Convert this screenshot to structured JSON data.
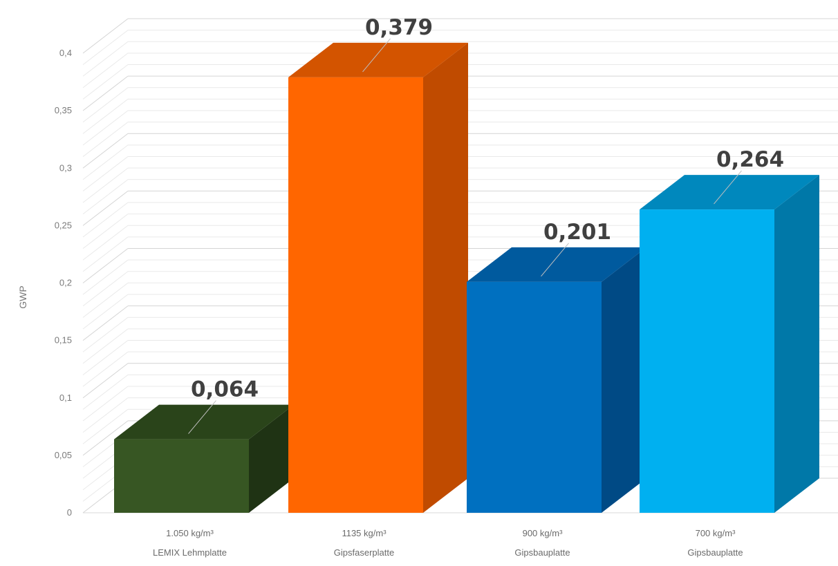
{
  "chart_data": {
    "type": "bar",
    "style": "3d-column",
    "ylabel": "GWP",
    "ylim": [
      0,
      0.4
    ],
    "ytick_labels": [
      "0",
      "0,05",
      "0,1",
      "0,15",
      "0,2",
      "0,25",
      "0,3",
      "0,35",
      "0,4"
    ],
    "grid": true,
    "legend": "none",
    "categories": [
      {
        "line1": "1.050 kg/m³",
        "line2": "LEMIX Lehmplatte"
      },
      {
        "line1": "1135 kg/m³",
        "line2": "Gipsfaserplatte"
      },
      {
        "line1": "900 kg/m³",
        "line2": "Gipsbauplatte"
      },
      {
        "line1": "700 kg/m³",
        "line2": "Gipsbauplatte"
      }
    ],
    "values": [
      0.064,
      0.379,
      0.201,
      0.264
    ],
    "value_labels": [
      "0,064",
      "0,379",
      "0,201",
      "0,264"
    ],
    "colors": [
      {
        "front": "#375623",
        "side": "#1f3314",
        "top": "#2a441a"
      },
      {
        "front": "#ff6600",
        "side": "#c04b00",
        "top": "#d35400"
      },
      {
        "front": "#0070c0",
        "side": "#004a85",
        "top": "#005a9e"
      },
      {
        "front": "#00b0f0",
        "side": "#0078a8",
        "top": "#0088bd"
      }
    ],
    "wall_color": "#e6e6e6"
  }
}
